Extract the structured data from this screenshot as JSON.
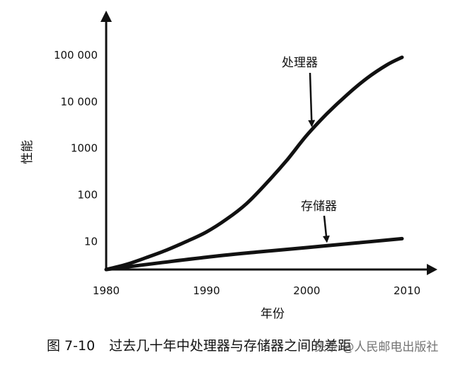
{
  "chart_data": {
    "type": "line",
    "title": "",
    "xlabel": "年份",
    "ylabel": "性能",
    "x_ticks": [
      1980,
      1990,
      2000,
      2010
    ],
    "y_ticks": [
      10,
      100,
      1000,
      10000,
      100000
    ],
    "y_tick_labels": [
      "10",
      "100",
      "1000",
      "10 000",
      "100 000"
    ],
    "y_scale": "log",
    "xlim": [
      1980,
      2010
    ],
    "ylim": [
      2.5,
      400000
    ],
    "grid": false,
    "series": [
      {
        "name": "处理器",
        "x": [
          1980,
          1982,
          1984,
          1986,
          1988,
          1990,
          1992,
          1994,
          1996,
          1998,
          2000,
          2002,
          2004,
          2006,
          2008,
          2009.5
        ],
        "values": [
          2.5,
          3.2,
          4.5,
          6.5,
          10,
          16,
          30,
          65,
          180,
          550,
          1900,
          5500,
          14000,
          32000,
          62000,
          90000
        ]
      },
      {
        "name": "存储器",
        "x": [
          1980,
          1985,
          1990,
          1995,
          2000,
          2005,
          2009.5
        ],
        "values": [
          2.5,
          3.4,
          4.6,
          5.9,
          7.4,
          9.3,
          11.5
        ]
      }
    ],
    "annotations": [
      {
        "text": "处理器",
        "series": "处理器",
        "arrow_to_x": 2000.5
      },
      {
        "text": "存储器",
        "series": "存储器",
        "arrow_to_x": 2002
      }
    ]
  },
  "caption": {
    "number": "图 7-10",
    "text": "过去几十年中处理器与存储器之间的差距"
  },
  "watermark": "头条 @人民邮电出版社"
}
